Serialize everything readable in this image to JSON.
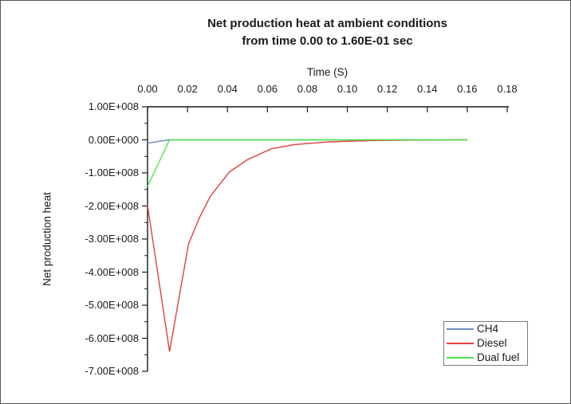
{
  "figure": {
    "background": "#ffffff",
    "border_color": "#555555"
  },
  "chart_data": {
    "type": "line",
    "title_line1": "Net production heat at ambient conditions",
    "title_line2": "from time 0.00 to 1.60E-01 sec",
    "x_axis": {
      "label": "Time (S)",
      "position": "top",
      "min": 0,
      "max": 0.18,
      "tick_values": [
        0,
        0.02,
        0.04,
        0.06,
        0.08,
        0.1,
        0.12,
        0.14,
        0.16,
        0.18
      ],
      "tick_labels": [
        "0.00",
        "0.02",
        "0.04",
        "0.06",
        "0.08",
        "0.10",
        "0.12",
        "0.14",
        "0.16",
        "0.18"
      ]
    },
    "y_axis": {
      "label": "Net production heat",
      "min": -700000000,
      "max": 100000000,
      "major_tick_step": 100000000,
      "minor_tick_step": 50000000,
      "tick_values": [
        100000000,
        0,
        -100000000,
        -200000000,
        -300000000,
        -400000000,
        -500000000,
        -600000000,
        -700000000
      ],
      "tick_labels": [
        "1.00E+008",
        "0.00E+000",
        "-1.00E+008",
        "-2.00E+008",
        "-3.00E+008",
        "-4.00E+008",
        "-5.00E+008",
        "-6.00E+008",
        "-7.00E+008"
      ]
    },
    "grid": false,
    "axis_color": "#1a1a1a",
    "legend_position": "bottom-right",
    "series": [
      {
        "name": "CH4",
        "color": "#6b8ec4",
        "points": [
          [
            0,
            -10000000
          ],
          [
            0.0105,
            0
          ],
          [
            0.16,
            0
          ]
        ]
      },
      {
        "name": "Diesel",
        "color": "#e04040",
        "points": [
          [
            0,
            -198000000
          ],
          [
            0.011,
            -640000000
          ],
          [
            0.0205,
            -315000000
          ],
          [
            0.026,
            -235000000
          ],
          [
            0.0315,
            -170000000
          ],
          [
            0.041,
            -97000000
          ],
          [
            0.05,
            -60000000
          ],
          [
            0.062,
            -27000000
          ],
          [
            0.074,
            -14000000
          ],
          [
            0.091,
            -6000000
          ],
          [
            0.11,
            -2500000
          ],
          [
            0.13,
            -1000000
          ],
          [
            0.16,
            0
          ]
        ]
      },
      {
        "name": "Dual fuel",
        "color": "#4de64d",
        "points": [
          [
            0,
            -141000000
          ],
          [
            0.011,
            0
          ],
          [
            0.16,
            0
          ]
        ]
      }
    ]
  }
}
